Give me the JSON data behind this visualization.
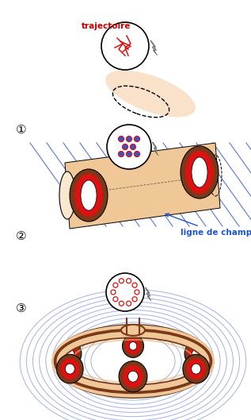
{
  "bg_color": "#ffffff",
  "red": "#dd1111",
  "brown": "#7a3a1a",
  "dark_brown": "#5a2a0a",
  "blue": "#4466cc",
  "peach": "#f0c898",
  "light_peach": "#fde8d0",
  "peach_mid": "#e8b878",
  "gray": "#888888",
  "light_gray": "#aaaaaa",
  "text_red": "#cc0000",
  "text_blue": "#2255cc",
  "label_traj": "trajectoire",
  "label_champ": "ligne de champ",
  "num1": "①",
  "num2": "②",
  "num3": "③",
  "figsize": [
    3.17,
    5.29
  ],
  "dpi": 100
}
